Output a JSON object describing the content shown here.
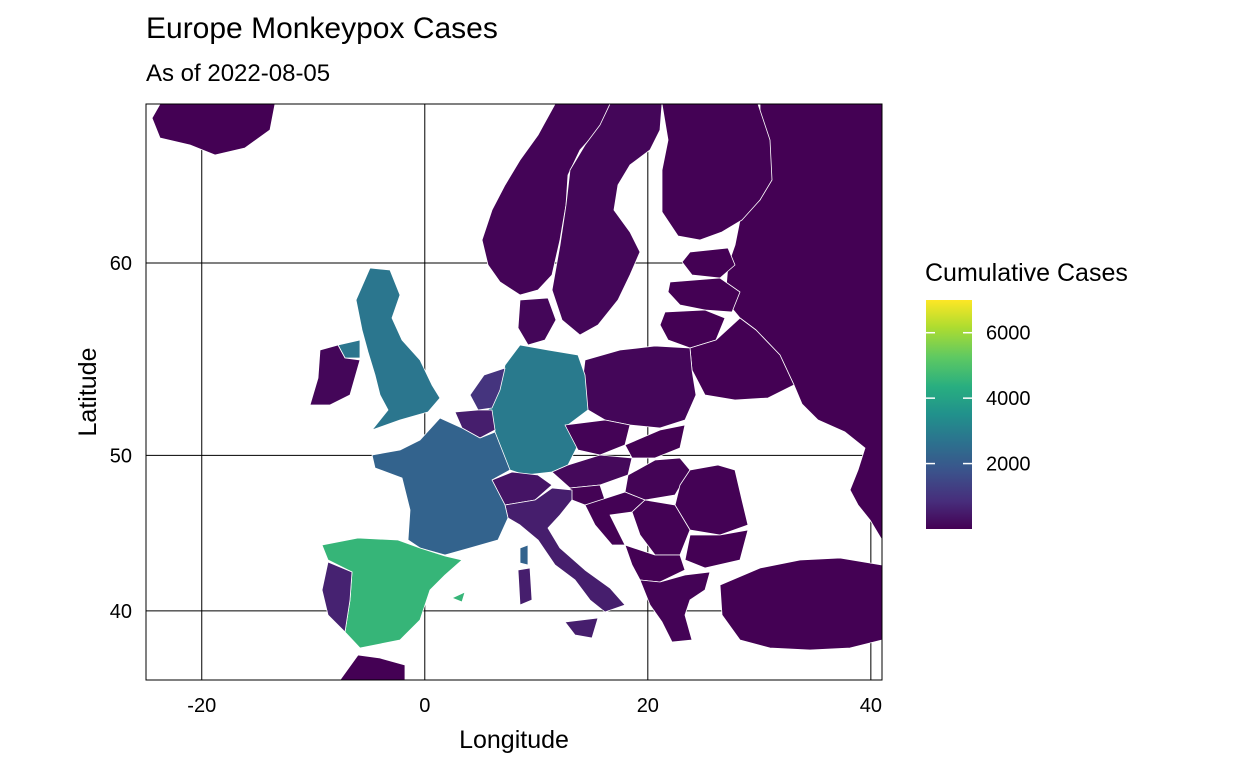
{
  "title": "Europe Monkeypox Cases",
  "subtitle": "As of  2022-08-05",
  "chart_data": {
    "type": "choropleth",
    "xlabel": "Longitude",
    "ylabel": "Latitude",
    "xlim": [
      -25,
      41
    ],
    "ylim": [
      35,
      66.5
    ],
    "x_ticks": [
      -20,
      0,
      20,
      40
    ],
    "y_ticks": [
      40,
      50,
      60
    ],
    "grid": true,
    "legend": {
      "title": "Cumulative Cases",
      "placement": "right",
      "min": 0,
      "max": 7000,
      "ticks": [
        2000,
        4000,
        6000
      ]
    },
    "colors": {
      "low": "#440154",
      "mid1": "#3b528b",
      "mid2": "#21918c",
      "mid3": "#5ec962",
      "high": "#fde725"
    },
    "regions": [
      {
        "name": "Spain",
        "value": 4577
      },
      {
        "name": "Germany",
        "value": 2887
      },
      {
        "name": "United Kingdom",
        "value": 2759
      },
      {
        "name": "France",
        "value": 2239
      },
      {
        "name": "Netherlands",
        "value": 1000
      },
      {
        "name": "Portugal",
        "value": 633
      },
      {
        "name": "Italy",
        "value": 545
      },
      {
        "name": "Belgium",
        "value": 546
      },
      {
        "name": "Switzerland",
        "value": 358
      },
      {
        "name": "Ireland",
        "value": 100
      },
      {
        "name": "Austria",
        "value": 150
      },
      {
        "name": "Denmark",
        "value": 100
      },
      {
        "name": "Poland",
        "value": 100
      },
      {
        "name": "Sweden",
        "value": 100
      },
      {
        "name": "Norway",
        "value": 60
      },
      {
        "name": "Czechia",
        "value": 40
      },
      {
        "name": "Hungary",
        "value": 50
      },
      {
        "name": "Romania",
        "value": 20
      },
      {
        "name": "Greece",
        "value": 40
      },
      {
        "name": "Finland",
        "value": 20
      },
      {
        "name": "Bulgaria",
        "value": 5
      },
      {
        "name": "Croatia",
        "value": 20
      },
      {
        "name": "Slovenia",
        "value": 30
      },
      {
        "name": "Slovakia",
        "value": 10
      },
      {
        "name": "Serbia",
        "value": 20
      },
      {
        "name": "Estonia",
        "value": 5
      },
      {
        "name": "Latvia",
        "value": 5
      },
      {
        "name": "Lithuania",
        "value": 5
      },
      {
        "name": "Turkey",
        "value": 5
      },
      {
        "name": "Russia",
        "value": 0
      },
      {
        "name": "Iceland",
        "value": 5
      },
      {
        "name": "Morocco",
        "value": 0
      },
      {
        "name": "Belarus",
        "value": 0
      }
    ]
  }
}
